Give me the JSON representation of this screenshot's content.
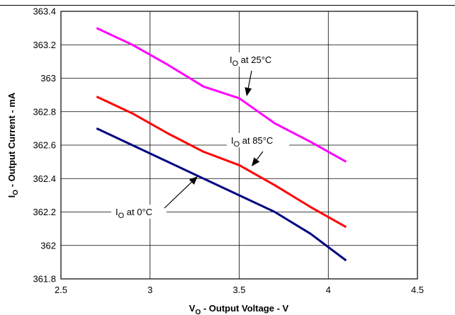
{
  "chart_data": {
    "type": "line",
    "xlabel": {
      "main": "V",
      "sub": "O",
      "rest": " - Output Voltage - V"
    },
    "ylabel": {
      "main": "I",
      "sub": "O",
      "rest": " - Output Current - mA"
    },
    "xlim": [
      2.5,
      4.5
    ],
    "ylim": [
      361.8,
      363.4
    ],
    "xticks": [
      2.5,
      3,
      3.5,
      4,
      4.5
    ],
    "xtick_labels": [
      "2.5",
      "3",
      "3.5",
      "4",
      "4.5"
    ],
    "yticks": [
      361.8,
      362,
      362.2,
      362.4,
      362.6,
      362.8,
      363,
      363.2,
      363.4
    ],
    "ytick_labels": [
      "361.8",
      "362",
      "362.2",
      "362.4",
      "362.6",
      "362.8",
      "363",
      "363.2",
      "363.4"
    ],
    "grid": true,
    "series": [
      {
        "name": "IO at 25°C",
        "label": {
          "main": "I",
          "sub": "O",
          "rest": " at 25°C"
        },
        "color": "#ff00ff",
        "x": [
          2.7,
          2.9,
          3.1,
          3.3,
          3.5,
          3.7,
          3.9,
          4.1
        ],
        "y": [
          363.3,
          363.2,
          363.08,
          362.95,
          362.88,
          362.73,
          362.62,
          362.5
        ]
      },
      {
        "name": "IO at 85°C",
        "label": {
          "main": "I",
          "sub": "O",
          "rest": " at 85°C"
        },
        "color": "#ff0000",
        "x": [
          2.7,
          2.9,
          3.1,
          3.3,
          3.5,
          3.7,
          3.9,
          4.1
        ],
        "y": [
          362.89,
          362.79,
          362.67,
          362.56,
          362.48,
          362.36,
          362.23,
          362.11
        ]
      },
      {
        "name": "IO at 0°C",
        "label": {
          "main": "I",
          "sub": "O",
          "rest": " at 0°C"
        },
        "color": "#000080",
        "x": [
          2.7,
          2.9,
          3.1,
          3.3,
          3.5,
          3.7,
          3.9,
          4.1
        ],
        "y": [
          362.7,
          362.6,
          362.5,
          362.4,
          362.3,
          362.2,
          362.07,
          361.91
        ]
      }
    ]
  }
}
